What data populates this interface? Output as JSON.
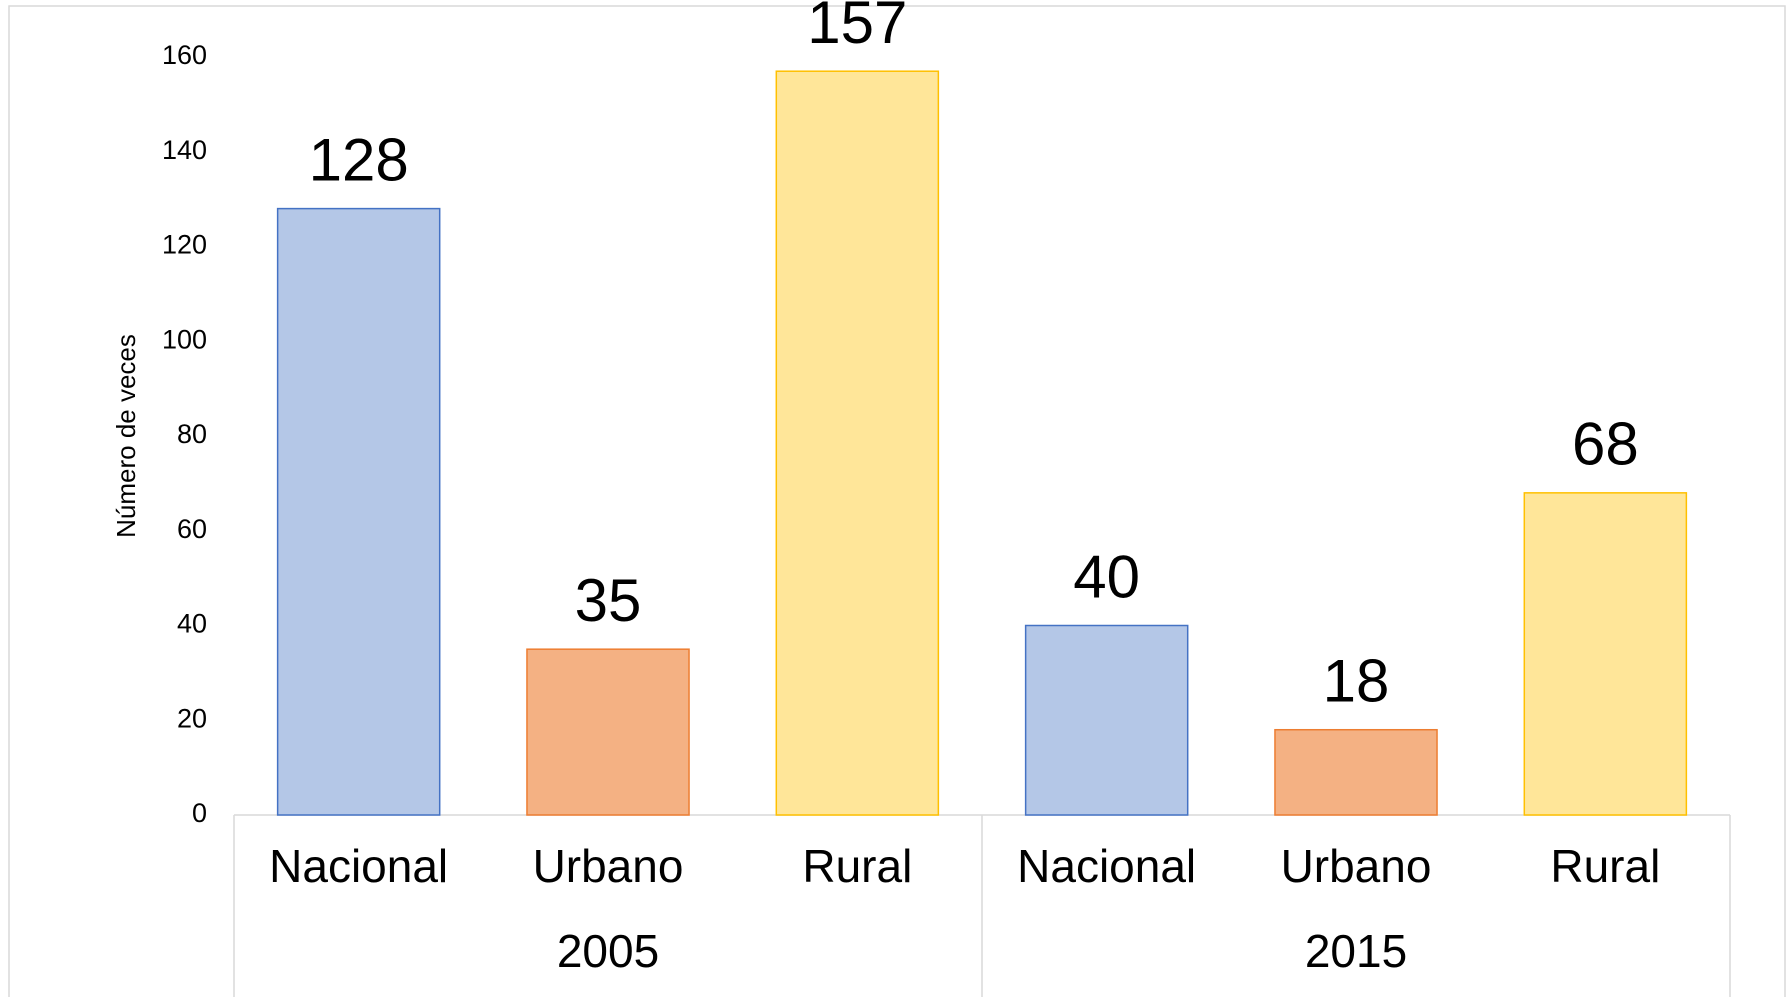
{
  "chart_data": {
    "type": "bar",
    "y_label": "Número de veces",
    "categories": [
      "Nacional",
      "Urbano",
      "Rural",
      "Nacional",
      "Urbano",
      "Rural"
    ],
    "group_labels": [
      "2005",
      "2015"
    ],
    "values": [
      128,
      35,
      157,
      40,
      18,
      68
    ],
    "colors": [
      "#b4c7e7",
      "#f4b183",
      "#ffe699",
      "#b4c7e7",
      "#f4b183",
      "#ffe699"
    ],
    "edge_colors": [
      "#4472c4",
      "#ed7d31",
      "#ffc000",
      "#4472c4",
      "#ed7d31",
      "#ffc000"
    ],
    "ylim": [
      0,
      160
    ],
    "yticks": [
      0,
      20,
      40,
      60,
      80,
      100,
      120,
      140,
      160
    ],
    "grid": false
  }
}
